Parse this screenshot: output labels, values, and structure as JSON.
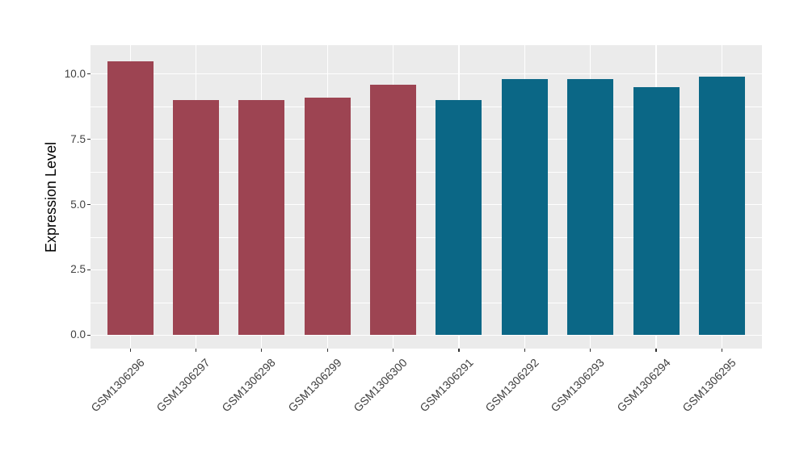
{
  "chart_data": {
    "type": "bar",
    "title": "",
    "xlabel": "",
    "ylabel": "Expression Level",
    "categories": [
      "GSM1306296",
      "GSM1306297",
      "GSM1306298",
      "GSM1306299",
      "GSM1306300",
      "GSM1306291",
      "GSM1306292",
      "GSM1306293",
      "GSM1306294",
      "GSM1306295"
    ],
    "values": [
      10.5,
      9.0,
      9.0,
      9.1,
      9.6,
      9.0,
      9.8,
      9.8,
      9.5,
      9.9
    ],
    "bar_colors": [
      "#9D4452",
      "#9D4452",
      "#9D4452",
      "#9D4452",
      "#9D4452",
      "#0B6786",
      "#0B6786",
      "#0B6786",
      "#0B6786",
      "#0B6786"
    ],
    "ytick_labels": [
      "0.0",
      "2.5",
      "5.0",
      "7.5",
      "10.0"
    ],
    "ytick_values": [
      0,
      2.5,
      5,
      7.5,
      10
    ],
    "minor_ytick_values": [
      1.25,
      3.75,
      6.25,
      8.75
    ],
    "ylim": [
      0,
      10.5
    ],
    "grid": true,
    "legend": "none",
    "styles": {
      "background": "#FFFFFF",
      "panel_bg": "#EBEBEB",
      "grid_color": "#FFFFFF",
      "tick_label_color": "#404040",
      "axis_title_color": "#000000",
      "tick_mark_color": "#333333"
    }
  }
}
